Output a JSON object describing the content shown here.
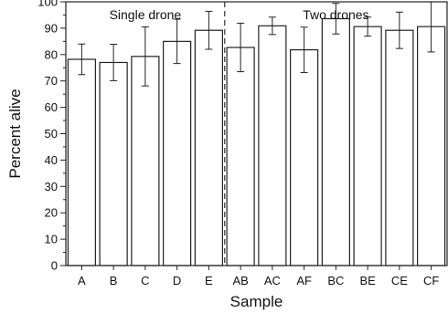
{
  "chart_data": {
    "type": "bar",
    "title": "",
    "xlabel": "Sample",
    "ylabel": "Percent alive",
    "ylim": [
      0,
      100
    ],
    "yticks": [
      0,
      10,
      20,
      30,
      40,
      50,
      60,
      70,
      80,
      90,
      100
    ],
    "grid": false,
    "categories": [
      "A",
      "B",
      "C",
      "D",
      "E",
      "AB",
      "AC",
      "AF",
      "BC",
      "BE",
      "CE",
      "CF"
    ],
    "values": [
      78.2,
      77.0,
      79.3,
      85.0,
      89.2,
      82.7,
      90.9,
      81.8,
      93.6,
      90.6,
      89.2,
      90.6
    ],
    "errors": [
      5.8,
      6.9,
      11.2,
      8.4,
      7.2,
      9.2,
      3.3,
      8.6,
      5.8,
      3.6,
      6.9,
      9.6
    ],
    "groups": [
      {
        "label": "Single drone",
        "categories": [
          "A",
          "B",
          "C",
          "D",
          "E"
        ]
      },
      {
        "label": "Two drones",
        "categories": [
          "AB",
          "AC",
          "AF",
          "BC",
          "BE",
          "CE",
          "CF"
        ]
      }
    ],
    "bar_color": "#ffffff",
    "edge_color": "#222222"
  }
}
